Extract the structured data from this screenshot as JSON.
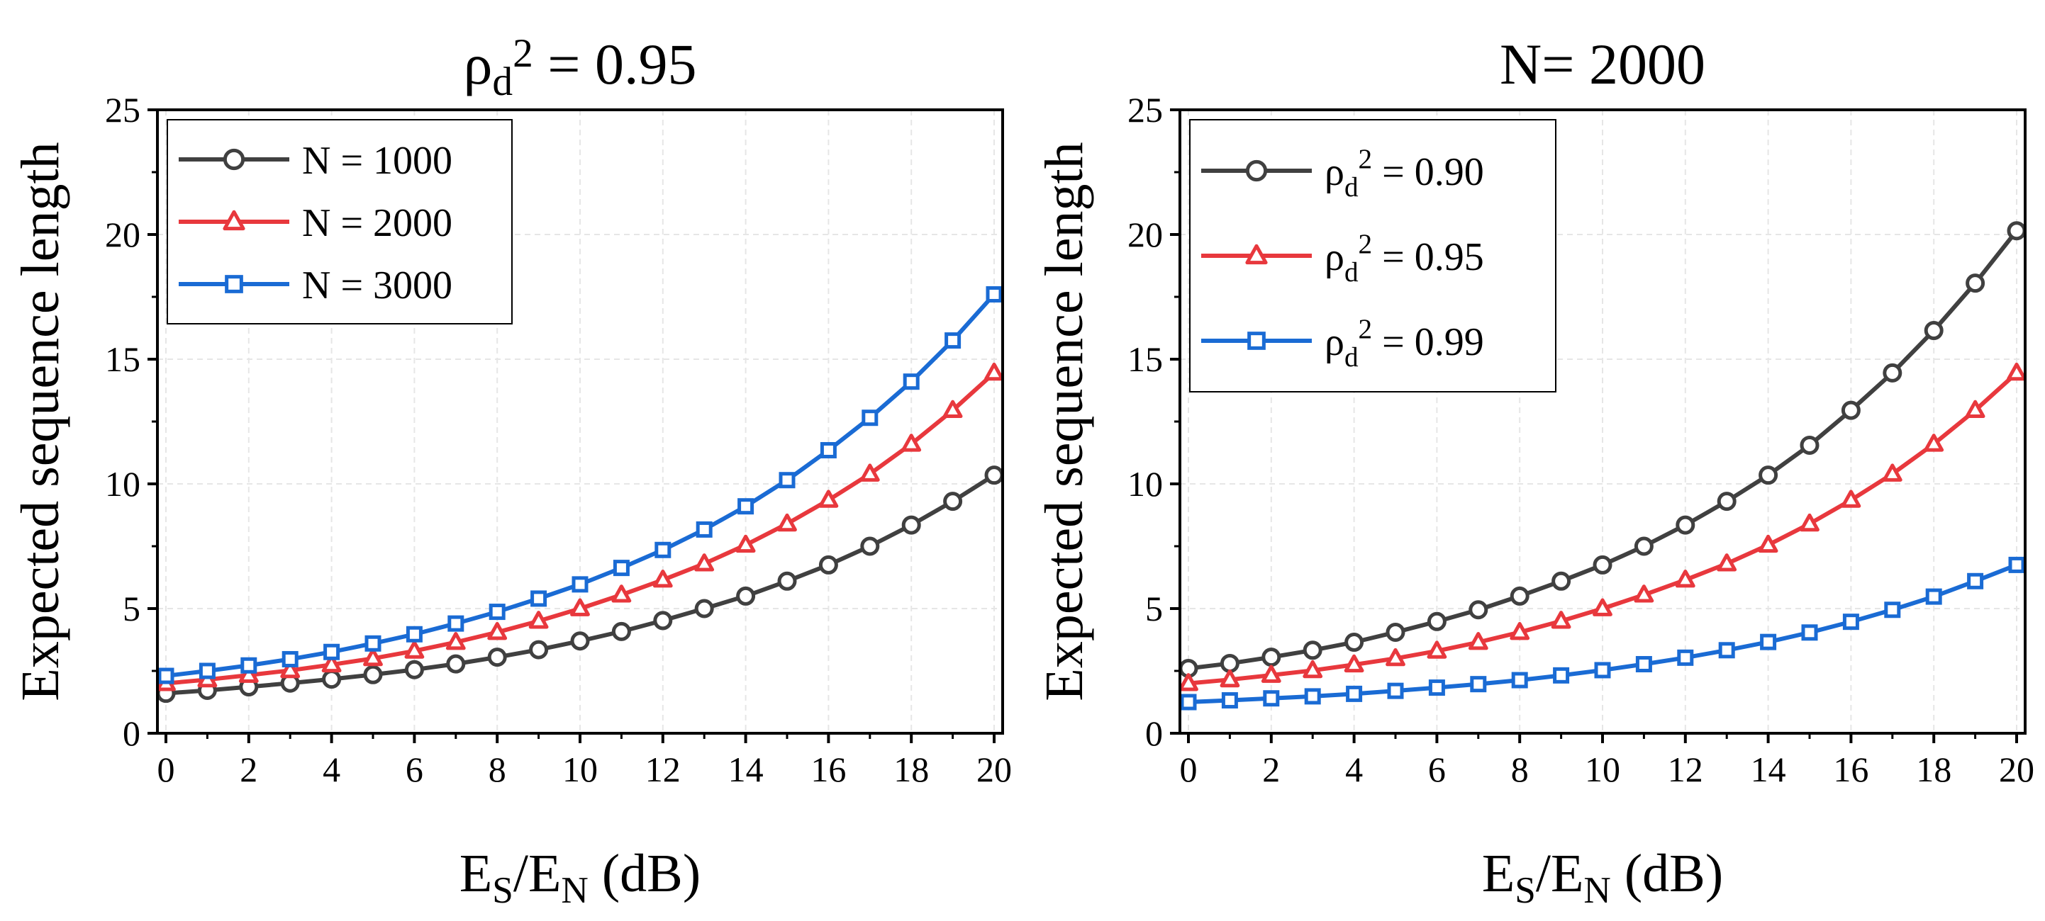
{
  "chart_data": [
    {
      "type": "line",
      "title": {
        "base": "ρ",
        "sub": "d",
        "sup": "2",
        "rest": " = 0.95"
      },
      "xlabel": {
        "a": "E",
        "a_sub": "S",
        "b": "/E",
        "b_sub": "N",
        "rest": " (dB)"
      },
      "ylabel": "Expected sequence length",
      "xlim": [
        0,
        20
      ],
      "ylim": [
        0,
        25
      ],
      "xticks": [
        0,
        2,
        4,
        6,
        8,
        10,
        12,
        14,
        16,
        18,
        20
      ],
      "yticks": [
        0,
        5,
        10,
        15,
        20,
        25
      ],
      "grid": true,
      "legend_position": "top-left",
      "x": [
        0,
        1,
        2,
        3,
        4,
        5,
        6,
        7,
        8,
        9,
        10,
        11,
        12,
        13,
        14,
        15,
        16,
        17,
        18,
        19,
        20
      ],
      "series": [
        {
          "name": "N =  1000",
          "color": "#404040",
          "marker": "circle",
          "values": [
            1.6,
            1.72,
            1.86,
            2.01,
            2.17,
            2.35,
            2.55,
            2.78,
            3.05,
            3.35,
            3.7,
            4.08,
            4.52,
            5.0,
            5.5,
            6.1,
            6.75,
            7.5,
            8.35,
            9.3,
            10.35
          ]
        },
        {
          "name": "N =  2000",
          "color": "#e8383d",
          "marker": "triangle",
          "values": [
            2.0,
            2.15,
            2.33,
            2.52,
            2.75,
            3.0,
            3.3,
            3.65,
            4.05,
            4.5,
            5.0,
            5.55,
            6.15,
            6.8,
            7.55,
            8.4,
            9.35,
            10.4,
            11.6,
            12.95,
            14.45
          ]
        },
        {
          "name": "N =  3000",
          "color": "#1a6bd4",
          "marker": "square",
          "values": [
            2.3,
            2.5,
            2.72,
            2.97,
            3.26,
            3.6,
            3.97,
            4.4,
            4.87,
            5.4,
            5.97,
            6.63,
            7.35,
            8.17,
            9.1,
            10.15,
            11.35,
            12.65,
            14.1,
            15.75,
            17.6
          ]
        }
      ]
    },
    {
      "type": "line",
      "title": {
        "base": "N= 2000",
        "sub": "",
        "sup": "",
        "rest": ""
      },
      "xlabel": {
        "a": "E",
        "a_sub": "S",
        "b": "/E",
        "b_sub": "N",
        "rest": " (dB)"
      },
      "ylabel": "Expected sequence length",
      "xlim": [
        0,
        20
      ],
      "ylim": [
        0,
        25
      ],
      "xticks": [
        0,
        2,
        4,
        6,
        8,
        10,
        12,
        14,
        16,
        18,
        20
      ],
      "yticks": [
        0,
        5,
        10,
        15,
        20,
        25
      ],
      "grid": true,
      "legend_position": "top-left",
      "x": [
        0,
        1,
        2,
        3,
        4,
        5,
        6,
        7,
        8,
        9,
        10,
        11,
        12,
        13,
        14,
        15,
        16,
        17,
        18,
        19,
        20
      ],
      "series": [
        {
          "name": "ρd2 =  0.90",
          "label": {
            "base": "ρ",
            "sub": "d",
            "sup": "2",
            "rest": " =  0.90"
          },
          "color": "#404040",
          "marker": "circle",
          "values": [
            2.6,
            2.8,
            3.05,
            3.33,
            3.65,
            4.05,
            4.48,
            4.95,
            5.5,
            6.1,
            6.75,
            7.5,
            8.35,
            9.3,
            10.35,
            11.55,
            12.95,
            14.45,
            16.15,
            18.05,
            20.15
          ]
        },
        {
          "name": "ρd2 =  0.95",
          "label": {
            "base": "ρ",
            "sub": "d",
            "sup": "2",
            "rest": " =  0.95"
          },
          "color": "#e8383d",
          "marker": "triangle",
          "values": [
            2.0,
            2.15,
            2.33,
            2.52,
            2.75,
            3.0,
            3.3,
            3.65,
            4.05,
            4.5,
            5.0,
            5.55,
            6.15,
            6.8,
            7.55,
            8.4,
            9.35,
            10.4,
            11.6,
            12.95,
            14.45
          ]
        },
        {
          "name": "ρd2 =  0.99",
          "label": {
            "base": "ρ",
            "sub": "d",
            "sup": "2",
            "rest": " =  0.99"
          },
          "color": "#1a6bd4",
          "marker": "square",
          "values": [
            1.25,
            1.32,
            1.4,
            1.48,
            1.58,
            1.7,
            1.83,
            1.97,
            2.13,
            2.32,
            2.53,
            2.77,
            3.03,
            3.33,
            3.66,
            4.04,
            4.47,
            4.95,
            5.48,
            6.1,
            6.75
          ]
        }
      ]
    }
  ]
}
